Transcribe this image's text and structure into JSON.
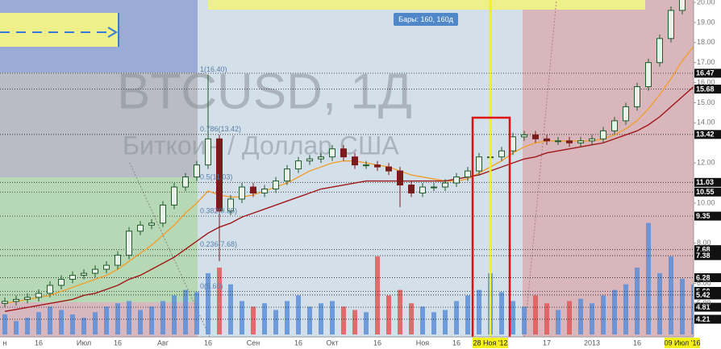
{
  "chart_data": {
    "type": "candlestick",
    "title": "BTCUSD, 1Д",
    "subtitle": "Биткоин / Доллар США",
    "info_label": "Бары: 160, 160д",
    "categories": [
      "н",
      null,
      null,
      "16",
      null,
      null,
      null,
      "Июл",
      null,
      null,
      "16",
      null,
      null,
      null,
      "Авг",
      null,
      null,
      null,
      "16",
      null,
      null,
      null,
      "Сен",
      null,
      null,
      null,
      "16",
      null,
      null,
      "Окт",
      null,
      null,
      null,
      "16",
      null,
      null,
      null,
      "Ноя",
      null,
      null,
      "16",
      null,
      null,
      "28 Ноя '12",
      null,
      null,
      null,
      null,
      "17",
      null,
      null,
      null,
      "2013",
      null,
      null,
      null,
      "16",
      null,
      null,
      null,
      "09 Июл '16",
      null
    ],
    "highlight": [
      43,
      60
    ],
    "open": [
      5.0,
      5.1,
      5.2,
      5.3,
      5.5,
      5.9,
      6.2,
      6.4,
      6.5,
      6.7,
      6.9,
      7.4,
      8.6,
      8.9,
      9.0,
      9.9,
      10.8,
      11.3,
      11.9,
      13.2,
      9.6,
      10.2,
      10.8,
      10.5,
      10.7,
      11.1,
      11.7,
      12.1,
      12.2,
      12.3,
      12.7,
      12.3,
      11.9,
      11.9,
      11.8,
      11.6,
      10.9,
      10.5,
      10.8,
      10.8,
      11.0,
      11.3,
      11.6,
      12.3,
      12.3,
      12.6,
      13.3,
      13.4,
      13.2,
      13.1,
      13.1,
      13.0,
      13.1,
      13.2,
      13.6,
      14.1,
      14.8,
      15.8,
      17.0,
      18.2,
      19.6,
      20.4
    ],
    "high": [
      5.3,
      5.4,
      5.5,
      5.7,
      6.1,
      6.4,
      6.6,
      6.7,
      6.9,
      7.1,
      7.6,
      8.8,
      9.1,
      9.2,
      10.1,
      11.0,
      11.5,
      12.1,
      16.4,
      13.4,
      10.4,
      11.0,
      11.0,
      10.9,
      11.3,
      11.9,
      12.3,
      12.4,
      12.5,
      12.9,
      12.9,
      12.5,
      12.1,
      12.1,
      12.0,
      11.8,
      11.1,
      11.0,
      11.0,
      11.2,
      11.5,
      11.8,
      12.5,
      12.5,
      12.8,
      13.5,
      13.6,
      13.6,
      13.4,
      13.3,
      13.3,
      13.3,
      13.4,
      13.8,
      14.3,
      15.0,
      16.0,
      17.2,
      18.4,
      19.8,
      20.6,
      21.0
    ],
    "low": [
      4.8,
      4.9,
      5.0,
      5.1,
      5.3,
      5.7,
      6.0,
      6.2,
      6.3,
      6.5,
      6.7,
      7.2,
      8.4,
      8.7,
      8.8,
      9.7,
      10.6,
      11.1,
      11.7,
      7.1,
      9.4,
      10.0,
      10.3,
      10.3,
      10.5,
      10.9,
      11.5,
      11.9,
      12.0,
      12.1,
      12.1,
      11.7,
      11.7,
      11.6,
      11.4,
      9.8,
      10.3,
      10.3,
      10.6,
      10.6,
      10.8,
      11.1,
      11.4,
      12.1,
      12.1,
      12.4,
      13.1,
      13.0,
      12.9,
      12.9,
      12.8,
      12.8,
      12.9,
      13.0,
      13.4,
      13.9,
      14.6,
      15.6,
      16.8,
      18.0,
      19.4,
      20.2
    ],
    "close": [
      5.1,
      5.2,
      5.3,
      5.5,
      5.9,
      6.2,
      6.4,
      6.5,
      6.7,
      6.9,
      7.4,
      8.6,
      8.9,
      9.0,
      9.9,
      10.8,
      11.3,
      11.9,
      13.2,
      9.6,
      10.2,
      10.8,
      10.5,
      10.7,
      11.1,
      11.7,
      12.1,
      12.2,
      12.3,
      12.7,
      12.3,
      11.9,
      11.9,
      11.8,
      11.6,
      10.9,
      10.5,
      10.8,
      10.8,
      11.0,
      11.3,
      11.6,
      12.3,
      12.3,
      12.6,
      13.3,
      13.4,
      13.2,
      13.1,
      13.1,
      13.0,
      13.1,
      13.2,
      13.6,
      14.1,
      14.8,
      15.8,
      17.0,
      18.2,
      19.6,
      20.4,
      20.8
    ],
    "up_color": "#1f5a2b",
    "down_color": "#7a1c1c",
    "ma_lines": [
      {
        "color": "#f0a030",
        "values": [
          5.0,
          5.1,
          5.2,
          5.3,
          5.4,
          5.6,
          5.8,
          6.0,
          6.2,
          6.4,
          6.7,
          7.1,
          7.5,
          7.9,
          8.4,
          8.9,
          9.5,
          10.0,
          10.6,
          10.4,
          10.3,
          10.3,
          10.4,
          10.6,
          10.8,
          11.0,
          11.3,
          11.6,
          11.8,
          12.0,
          12.1,
          12.1,
          12.0,
          11.9,
          11.8,
          11.6,
          11.4,
          11.3,
          11.2,
          11.1,
          11.1,
          11.2,
          11.5,
          11.8,
          12.1,
          12.5,
          12.8,
          13.0,
          13.1,
          13.1,
          13.1,
          13.1,
          13.1,
          13.2,
          13.4,
          13.7,
          14.1,
          14.7,
          15.4,
          16.2,
          17.1,
          17.8
        ]
      },
      {
        "color": "#a01818",
        "values": [
          4.6,
          4.7,
          4.8,
          4.9,
          5.0,
          5.1,
          5.2,
          5.4,
          5.5,
          5.7,
          5.9,
          6.2,
          6.4,
          6.7,
          7.0,
          7.3,
          7.7,
          8.1,
          8.5,
          8.8,
          9.0,
          9.3,
          9.5,
          9.7,
          9.9,
          10.1,
          10.3,
          10.5,
          10.7,
          10.8,
          10.9,
          11.0,
          11.1,
          11.1,
          11.1,
          11.1,
          11.1,
          11.1,
          11.1,
          11.1,
          11.2,
          11.3,
          11.4,
          11.6,
          11.8,
          12.0,
          12.2,
          12.3,
          12.5,
          12.6,
          12.7,
          12.8,
          12.9,
          13.0,
          13.2,
          13.4,
          13.6,
          13.9,
          14.3,
          14.8,
          15.3,
          15.8
        ]
      }
    ],
    "volume": {
      "up_color": "#5b8ed8",
      "down_color": "#e05858",
      "values": [
        18,
        12,
        15,
        20,
        25,
        22,
        18,
        15,
        20,
        25,
        28,
        30,
        22,
        25,
        30,
        35,
        40,
        38,
        55,
        60,
        45,
        30,
        25,
        28,
        22,
        30,
        35,
        25,
        28,
        30,
        25,
        22,
        20,
        70,
        35,
        40,
        28,
        25,
        20,
        22,
        30,
        35,
        40,
        55,
        38,
        30,
        25,
        35,
        28,
        22,
        30,
        32,
        28,
        35,
        40,
        45,
        60,
        100,
        55,
        70,
        50,
        45
      ]
    },
    "y2lim": [
      0,
      300
    ],
    "ylim": [
      3.45,
      20.12
    ],
    "yticks": [
      {
        "value": 20,
        "label": "20.00"
      },
      {
        "value": 19,
        "label": "19.00"
      },
      {
        "value": 18,
        "label": "18.00"
      },
      {
        "value": 17,
        "label": "17.00"
      },
      {
        "value": 16,
        "label": "16.00"
      },
      {
        "value": 15,
        "label": "15.00"
      },
      {
        "value": 14,
        "label": "14.00"
      },
      {
        "value": 12,
        "label": "12.00"
      },
      {
        "value": 10,
        "label": "10.00"
      },
      {
        "value": 8,
        "label": "8.00"
      },
      {
        "value": 6,
        "label": "6.00"
      },
      {
        "value": 5,
        "label": "5.00"
      }
    ],
    "levels": [
      16.47,
      15.68,
      13.42,
      11.03,
      10.55,
      9.35,
      7.68,
      7.38,
      6.28,
      {
        "value": 5.6,
        "label": "5.60"
      },
      5.42,
      4.81,
      4.21
    ],
    "annotations": [
      {
        "value": 16.4,
        "label": "1(16.40)"
      },
      {
        "value": 13.42,
        "label": "0.786(13.42)"
      },
      {
        "value": 11.03,
        "label": "0.5(11.03)"
      },
      {
        "value": 9.35,
        "label": "0.382(9.35)"
      },
      {
        "value": 7.68,
        "label": "0.236(7.68)"
      },
      {
        "value": 5.6,
        "label": "0(5.60)"
      }
    ]
  }
}
